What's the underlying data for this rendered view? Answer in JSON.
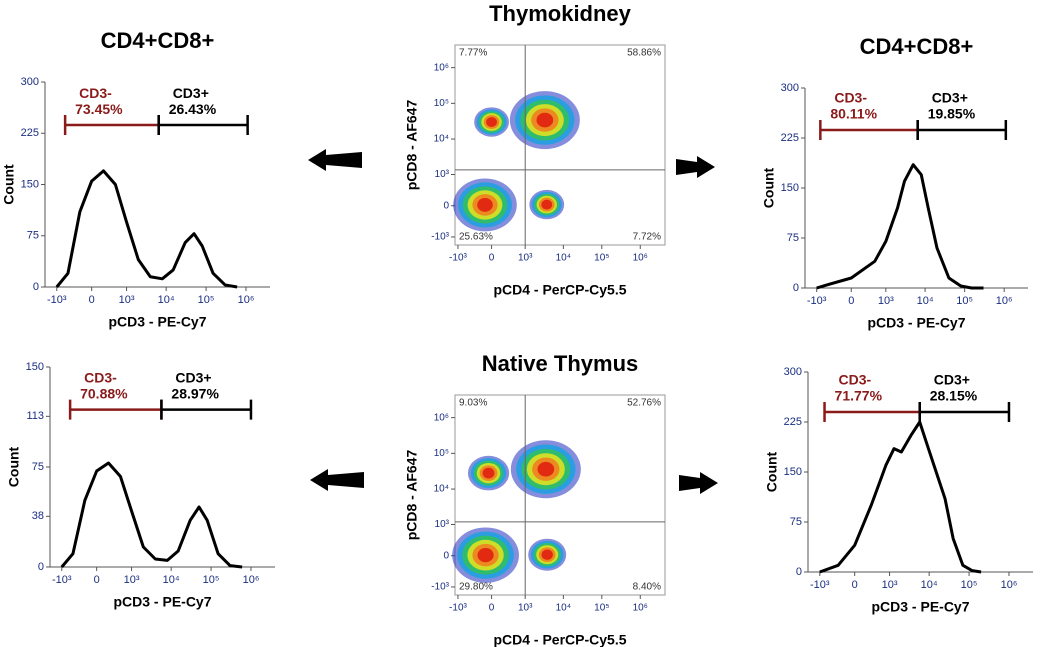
{
  "chart_data": [
    {
      "type": "histogram",
      "title": "CD4+CD8+",
      "xlabel": "pCD3 - PE-Cy7",
      "ylabel": "Count",
      "xscale": "biexponential",
      "xlim": [
        -2000,
        4000000
      ],
      "ylim": [
        0,
        300
      ],
      "xticks": [
        {
          "value": -1000,
          "label": "-10³"
        },
        0,
        {
          "value": 1000,
          "label": "10³"
        },
        {
          "value": 10000,
          "label": "10⁴"
        },
        {
          "value": 100000,
          "label": "10⁵"
        },
        {
          "value": 1000000,
          "label": "10⁶"
        }
      ],
      "yticks": [
        0,
        75,
        150,
        225,
        300
      ],
      "color": "#000000",
      "x": [
        -1000,
        -500,
        -200,
        0,
        200,
        500,
        1000,
        2000,
        4000,
        8000,
        15000,
        30000,
        50000,
        80000,
        150000,
        300000,
        600000
      ],
      "values": [
        0,
        20,
        110,
        155,
        170,
        150,
        95,
        40,
        15,
        12,
        25,
        65,
        78,
        60,
        20,
        3,
        0
      ],
      "gates": [
        {
          "name": "CD3-",
          "value": 73.45,
          "value_label": "73.45%",
          "range": [
            -600,
            6500
          ],
          "level": 237,
          "color": "#8b1a1a"
        },
        {
          "name": "CD3+",
          "value": 26.43,
          "value_label": "26.43%",
          "range": [
            6500,
            1100000
          ],
          "level": 237,
          "color": "#000000"
        }
      ]
    },
    {
      "type": "density",
      "title": "Thymokidney",
      "xlabel": "pCD4 - PerCP-Cy5.5",
      "ylabel": "pCD8 - AF647",
      "xscale": "biexponential",
      "yscale": "biexponential",
      "xlim": [
        -1200,
        4400000
      ],
      "ylim": [
        -1700,
        4300000
      ],
      "xticks": [
        {
          "value": -1000,
          "label": "-10³"
        },
        0,
        {
          "value": 1000,
          "label": "10³"
        },
        {
          "value": 10000,
          "label": "10⁴"
        },
        {
          "value": 100000,
          "label": "10⁵"
        },
        {
          "value": 1000000,
          "label": "10⁶"
        }
      ],
      "yticks": [
        {
          "value": -1000,
          "label": "-10³"
        },
        0,
        {
          "value": 1000,
          "label": "10³"
        },
        {
          "value": 10000,
          "label": "10⁴"
        },
        {
          "value": 100000,
          "label": "10⁵"
        },
        {
          "value": 1000000,
          "label": "10⁶"
        }
      ],
      "x": [
        3300,
        -110,
        3700,
        0
      ],
      "values": [
        34000,
        14,
        20,
        30000
      ],
      "sizes": [
        1,
        0.9,
        0.45,
        0.45
      ],
      "gate": {
        "x": 1000,
        "y": 1360
      },
      "quadrant_values": [
        7.77,
        58.86,
        25.63,
        7.72
      ],
      "quadrant_labels": [
        "7.77%",
        "58.86%",
        "25.63%",
        "7.72%"
      ]
    },
    {
      "type": "histogram",
      "title": "CD4+CD8+",
      "xlabel": "pCD3 - PE-Cy7",
      "ylabel": "Count",
      "xscale": "biexponential",
      "xlim": [
        -2000,
        4000000
      ],
      "ylim": [
        0,
        300
      ],
      "xticks": [
        {
          "value": -1000,
          "label": "-10³"
        },
        0,
        {
          "value": 1000,
          "label": "10³"
        },
        {
          "value": 10000,
          "label": "10⁴"
        },
        {
          "value": 100000,
          "label": "10⁵"
        },
        {
          "value": 1000000,
          "label": "10⁶"
        }
      ],
      "yticks": [
        0,
        75,
        150,
        225,
        300
      ],
      "color": "#000000",
      "x": [
        -1000,
        -500,
        0,
        500,
        1000,
        2000,
        3000,
        5000,
        8000,
        12000,
        20000,
        40000,
        80000,
        150000,
        300000
      ],
      "values": [
        0,
        5,
        15,
        40,
        70,
        120,
        160,
        185,
        170,
        120,
        60,
        15,
        3,
        0,
        0
      ],
      "gates": [
        {
          "name": "CD3-",
          "value": 80.11,
          "value_label": "80.11%",
          "range": [
            -800,
            6500
          ],
          "level": 237,
          "color": "#8b1a1a"
        },
        {
          "name": "CD3+",
          "value": 19.85,
          "value_label": "19.85%",
          "range": [
            6500,
            1100000
          ],
          "level": 237,
          "color": "#000000"
        }
      ]
    },
    {
      "type": "histogram",
      "xlabel": "pCD3 - PE-Cy7",
      "ylabel": "Count",
      "xscale": "biexponential",
      "xlim": [
        -2000,
        4000000
      ],
      "ylim": [
        0,
        150
      ],
      "xticks": [
        {
          "value": -1000,
          "label": "-10³"
        },
        0,
        {
          "value": 1000,
          "label": "10³"
        },
        {
          "value": 10000,
          "label": "10⁴"
        },
        {
          "value": 100000,
          "label": "10⁵"
        },
        {
          "value": 1000000,
          "label": "10⁶"
        }
      ],
      "yticks": [
        0,
        38,
        75,
        113,
        150
      ],
      "color": "#000000",
      "x": [
        -1000,
        -500,
        -200,
        0,
        200,
        500,
        1000,
        2000,
        4000,
        8000,
        15000,
        30000,
        50000,
        80000,
        150000,
        300000,
        600000
      ],
      "values": [
        0,
        10,
        50,
        72,
        78,
        68,
        42,
        15,
        6,
        5,
        12,
        35,
        45,
        35,
        10,
        1,
        0
      ],
      "gates": [
        {
          "name": "CD3-",
          "value": 70.88,
          "value_label": "70.88%",
          "range": [
            -600,
            5700
          ],
          "level": 118,
          "color": "#8b1a1a"
        },
        {
          "name": "CD3+",
          "value": 28.97,
          "value_label": "28.97%",
          "range": [
            5700,
            1000000
          ],
          "level": 118,
          "color": "#000000"
        }
      ]
    },
    {
      "type": "density",
      "title": "Native Thymus",
      "xlabel": "pCD4 - PerCP-Cy5.5",
      "ylabel": "pCD8 - AF647",
      "xscale": "biexponential",
      "yscale": "biexponential",
      "xlim": [
        -1200,
        4400000
      ],
      "ylim": [
        -1700,
        4300000
      ],
      "xticks": [
        {
          "value": -1000,
          "label": "-10³"
        },
        0,
        {
          "value": 1000,
          "label": "10³"
        },
        {
          "value": 10000,
          "label": "10⁴"
        },
        {
          "value": 100000,
          "label": "10⁵"
        },
        {
          "value": 1000000,
          "label": "10⁶"
        }
      ],
      "yticks": [
        {
          "value": -1000,
          "label": "-10³"
        },
        0,
        {
          "value": 1000,
          "label": "10³"
        },
        {
          "value": 10000,
          "label": "10⁴"
        },
        {
          "value": 100000,
          "label": "10⁵"
        },
        {
          "value": 1000000,
          "label": "10⁶"
        }
      ],
      "x": [
        3500,
        -100,
        3800,
        -50
      ],
      "values": [
        36000,
        10,
        18,
        28000
      ],
      "sizes": [
        1,
        0.95,
        0.5,
        0.55
      ],
      "gate": {
        "x": 1000,
        "y": 1190
      },
      "quadrant_values": [
        9.03,
        52.76,
        29.8,
        8.4
      ],
      "quadrant_labels": [
        "9.03%",
        "52.76%",
        "29.80%",
        "8.40%"
      ]
    },
    {
      "type": "histogram",
      "xlabel": "pCD3 - PE-Cy7",
      "ylabel": "Count",
      "xscale": "biexponential",
      "xlim": [
        -2000,
        4000000
      ],
      "ylim": [
        0,
        300
      ],
      "xticks": [
        {
          "value": -1000,
          "label": "-10³"
        },
        0,
        {
          "value": 1000,
          "label": "10³"
        },
        {
          "value": 10000,
          "label": "10⁴"
        },
        {
          "value": 100000,
          "label": "10⁵"
        },
        {
          "value": 1000000,
          "label": "10⁶"
        }
      ],
      "yticks": [
        0,
        75,
        150,
        225,
        300
      ],
      "color": "#000000",
      "x": [
        -1000,
        -300,
        0,
        300,
        800,
        1300,
        2000,
        3500,
        5800,
        9000,
        15000,
        25000,
        40000,
        70000,
        120000,
        200000
      ],
      "values": [
        0,
        10,
        40,
        100,
        160,
        185,
        180,
        205,
        225,
        190,
        150,
        110,
        50,
        10,
        2,
        0
      ],
      "gates": [
        {
          "name": "CD3-",
          "value": 71.77,
          "value_label": "71.77%",
          "range": [
            -750,
            5800
          ],
          "level": 240,
          "color": "#8b1a1a"
        },
        {
          "name": "CD3+",
          "value": 28.15,
          "value_label": "28.15%",
          "range": [
            5800,
            1000000
          ],
          "level": 240,
          "color": "#000000"
        }
      ]
    }
  ]
}
